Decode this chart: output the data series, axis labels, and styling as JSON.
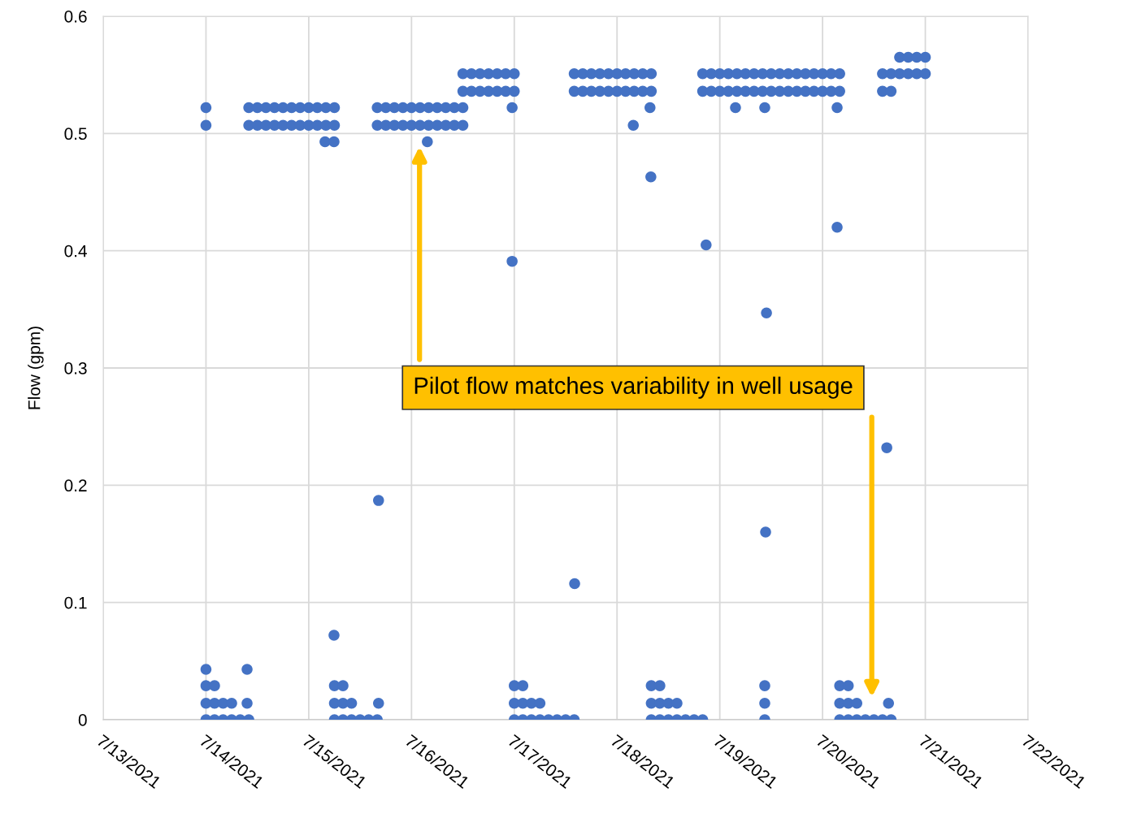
{
  "chart_data": {
    "type": "scatter",
    "ylabel": "Flow (gpm)",
    "xlim": [
      "2021-07-13",
      "2021-07-22"
    ],
    "xticks": [
      {
        "value": "2021-07-13",
        "label": "7/13/2021"
      },
      {
        "value": "2021-07-14",
        "label": "7/14/2021"
      },
      {
        "value": "2021-07-15",
        "label": "7/15/2021"
      },
      {
        "value": "2021-07-16",
        "label": "7/16/2021"
      },
      {
        "value": "2021-07-17",
        "label": "7/17/2021"
      },
      {
        "value": "2021-07-18",
        "label": "7/18/2021"
      },
      {
        "value": "2021-07-19",
        "label": "7/19/2021"
      },
      {
        "value": "2021-07-20",
        "label": "7/20/2021"
      },
      {
        "value": "2021-07-21",
        "label": "7/21/2021"
      },
      {
        "value": "2021-07-22",
        "label": "7/22/2021"
      }
    ],
    "ylim": [
      0,
      0.6
    ],
    "yticks": [
      0,
      0.1,
      0.2,
      0.3,
      0.4,
      0.5,
      0.6
    ],
    "grid": true,
    "marker": "circle",
    "annotations": [
      "Pilot flow matches variability in well usage"
    ],
    "series": [
      {
        "color": "#4472c4",
        "x": [
          "2021-07-14T00:00",
          "2021-07-14T10:00",
          "2021-07-14T12:00",
          "2021-07-14T14:00",
          "2021-07-14T16:00",
          "2021-07-14T18:00",
          "2021-07-14T20:00",
          "2021-07-14T22:00",
          "2021-07-15T00:00",
          "2021-07-15T02:00",
          "2021-07-15T04:00",
          "2021-07-15T06:00",
          "2021-07-15T16:00",
          "2021-07-15T18:00",
          "2021-07-15T20:00",
          "2021-07-15T22:00",
          "2021-07-16T00:00",
          "2021-07-16T02:00",
          "2021-07-16T04:00",
          "2021-07-16T06:00",
          "2021-07-16T08:00",
          "2021-07-16T10:00",
          "2021-07-16T12:00",
          "2021-07-16T23:30",
          "2021-07-18T07:42",
          "2021-07-19T03:40",
          "2021-07-19T10:30",
          "2021-07-20T03:24"
        ],
        "values": [
          0.522,
          0.522,
          0.522,
          0.522,
          0.522,
          0.522,
          0.522,
          0.522,
          0.522,
          0.522,
          0.522,
          0.522,
          0.522,
          0.522,
          0.522,
          0.522,
          0.522,
          0.522,
          0.522,
          0.522,
          0.522,
          0.522,
          0.522,
          0.522,
          0.522,
          0.522,
          0.522,
          0.522
        ]
      },
      {
        "color": "#4472c4",
        "x": [
          "2021-07-14T00:00",
          "2021-07-14T10:00",
          "2021-07-14T12:00",
          "2021-07-14T14:00",
          "2021-07-14T16:00",
          "2021-07-14T18:00",
          "2021-07-14T20:00",
          "2021-07-14T22:00",
          "2021-07-15T00:00",
          "2021-07-15T02:00",
          "2021-07-15T04:00",
          "2021-07-15T06:00",
          "2021-07-15T16:00",
          "2021-07-15T18:00",
          "2021-07-15T20:00",
          "2021-07-15T22:00",
          "2021-07-16T00:00",
          "2021-07-16T02:00",
          "2021-07-16T04:00",
          "2021-07-16T06:00",
          "2021-07-16T08:00",
          "2021-07-16T10:00",
          "2021-07-16T12:00",
          "2021-07-18T03:48"
        ],
        "values": [
          0.507,
          0.507,
          0.507,
          0.507,
          0.507,
          0.507,
          0.507,
          0.507,
          0.507,
          0.507,
          0.507,
          0.507,
          0.507,
          0.507,
          0.507,
          0.507,
          0.507,
          0.507,
          0.507,
          0.507,
          0.507,
          0.507,
          0.507,
          0.507
        ]
      },
      {
        "color": "#4472c4",
        "x": [
          "2021-07-15T03:48",
          "2021-07-15T05:54",
          "2021-07-16T03:42"
        ],
        "values": [
          0.493,
          0.493,
          0.493
        ]
      },
      {
        "color": "#4472c4",
        "x": [
          "2021-07-16T12:00",
          "2021-07-16T14:00",
          "2021-07-16T16:00",
          "2021-07-16T18:00",
          "2021-07-16T20:00",
          "2021-07-16T22:00",
          "2021-07-17T00:00",
          "2021-07-17T14:00",
          "2021-07-17T16:00",
          "2021-07-17T18:00",
          "2021-07-17T20:00",
          "2021-07-17T22:00",
          "2021-07-18T00:00",
          "2021-07-18T02:00",
          "2021-07-18T04:00",
          "2021-07-18T06:00",
          "2021-07-18T08:00",
          "2021-07-18T20:00",
          "2021-07-18T22:00",
          "2021-07-19T00:00",
          "2021-07-19T02:00",
          "2021-07-19T04:00",
          "2021-07-19T06:00",
          "2021-07-19T08:00",
          "2021-07-19T10:00",
          "2021-07-19T12:00",
          "2021-07-19T14:00",
          "2021-07-19T16:00",
          "2021-07-19T18:00",
          "2021-07-19T20:00",
          "2021-07-19T22:00",
          "2021-07-20T00:00",
          "2021-07-20T02:00",
          "2021-07-20T04:00",
          "2021-07-20T14:00",
          "2021-07-20T16:00",
          "2021-07-20T18:00",
          "2021-07-20T20:00",
          "2021-07-20T22:00",
          "2021-07-21T00:00"
        ],
        "values": [
          0.551,
          0.551,
          0.551,
          0.551,
          0.551,
          0.551,
          0.551,
          0.551,
          0.551,
          0.551,
          0.551,
          0.551,
          0.551,
          0.551,
          0.551,
          0.551,
          0.551,
          0.551,
          0.551,
          0.551,
          0.551,
          0.551,
          0.551,
          0.551,
          0.551,
          0.551,
          0.551,
          0.551,
          0.551,
          0.551,
          0.551,
          0.551,
          0.551,
          0.551,
          0.551,
          0.551,
          0.551,
          0.551,
          0.551,
          0.551
        ]
      },
      {
        "color": "#4472c4",
        "x": [
          "2021-07-16T12:00",
          "2021-07-16T14:00",
          "2021-07-16T16:00",
          "2021-07-16T18:00",
          "2021-07-16T20:00",
          "2021-07-16T22:00",
          "2021-07-17T00:00",
          "2021-07-17T14:00",
          "2021-07-17T16:00",
          "2021-07-17T18:00",
          "2021-07-17T20:00",
          "2021-07-17T22:00",
          "2021-07-18T00:00",
          "2021-07-18T02:00",
          "2021-07-18T04:00",
          "2021-07-18T06:00",
          "2021-07-18T08:00",
          "2021-07-18T20:00",
          "2021-07-18T22:00",
          "2021-07-19T00:00",
          "2021-07-19T02:00",
          "2021-07-19T04:00",
          "2021-07-19T06:00",
          "2021-07-19T08:00",
          "2021-07-19T10:00",
          "2021-07-19T12:00",
          "2021-07-19T14:00",
          "2021-07-19T16:00",
          "2021-07-19T18:00",
          "2021-07-19T20:00",
          "2021-07-19T22:00",
          "2021-07-20T00:00",
          "2021-07-20T02:00",
          "2021-07-20T04:00",
          "2021-07-20T14:00",
          "2021-07-20T16:00"
        ],
        "values": [
          0.536,
          0.536,
          0.536,
          0.536,
          0.536,
          0.536,
          0.536,
          0.536,
          0.536,
          0.536,
          0.536,
          0.536,
          0.536,
          0.536,
          0.536,
          0.536,
          0.536,
          0.536,
          0.536,
          0.536,
          0.536,
          0.536,
          0.536,
          0.536,
          0.536,
          0.536,
          0.536,
          0.536,
          0.536,
          0.536,
          0.536,
          0.536,
          0.536,
          0.536,
          0.536,
          0.536
        ]
      },
      {
        "color": "#4472c4",
        "x": [
          "2021-07-20T18:00",
          "2021-07-20T20:00",
          "2021-07-20T22:00",
          "2021-07-21T00:00"
        ],
        "values": [
          0.565,
          0.565,
          0.565,
          0.565
        ]
      },
      {
        "color": "#4472c4",
        "x": [
          "2021-07-16T23:30",
          "2021-07-18T07:54",
          "2021-07-18T20:48",
          "2021-07-19T10:54",
          "2021-07-20T03:24",
          "2021-07-20T15:00",
          "2021-07-19T10:42",
          "2021-07-17T14:06",
          "2021-07-15T16:18",
          "2021-07-15T05:54"
        ],
        "values": [
          0.391,
          0.463,
          0.405,
          0.347,
          0.42,
          0.232,
          0.16,
          0.116,
          0.187,
          0.072
        ]
      },
      {
        "color": "#4472c4",
        "x": [
          "2021-07-14T00:00",
          "2021-07-14T09:36",
          "2021-07-14T00:00",
          "2021-07-14T02:00",
          "2021-07-15T06:00",
          "2021-07-15T08:00",
          "2021-07-17T00:00",
          "2021-07-17T02:00",
          "2021-07-18T08:00",
          "2021-07-18T10:00",
          "2021-07-19T10:30",
          "2021-07-20T04:00",
          "2021-07-20T06:00"
        ],
        "values": [
          0.043,
          0.043,
          0.029,
          0.029,
          0.029,
          0.029,
          0.029,
          0.029,
          0.029,
          0.029,
          0.029,
          0.029,
          0.029
        ]
      },
      {
        "color": "#4472c4",
        "x": [
          "2021-07-14T00:00",
          "2021-07-14T02:00",
          "2021-07-14T04:00",
          "2021-07-14T06:00",
          "2021-07-14T09:36",
          "2021-07-15T06:00",
          "2021-07-15T08:00",
          "2021-07-15T10:00",
          "2021-07-15T16:18",
          "2021-07-17T00:00",
          "2021-07-17T02:00",
          "2021-07-17T04:00",
          "2021-07-17T06:00",
          "2021-07-18T08:00",
          "2021-07-18T10:00",
          "2021-07-18T12:00",
          "2021-07-18T14:00",
          "2021-07-19T10:30",
          "2021-07-20T04:00",
          "2021-07-20T06:00",
          "2021-07-20T08:00",
          "2021-07-20T15:24"
        ],
        "values": [
          0.014,
          0.014,
          0.014,
          0.014,
          0.014,
          0.014,
          0.014,
          0.014,
          0.014,
          0.014,
          0.014,
          0.014,
          0.014,
          0.014,
          0.014,
          0.014,
          0.014,
          0.014,
          0.014,
          0.014,
          0.014,
          0.014
        ]
      },
      {
        "color": "#4472c4",
        "x": [
          "2021-07-14T00:00",
          "2021-07-14T02:00",
          "2021-07-14T04:00",
          "2021-07-14T06:00",
          "2021-07-14T08:00",
          "2021-07-14T10:00",
          "2021-07-15T06:00",
          "2021-07-15T08:00",
          "2021-07-15T10:00",
          "2021-07-15T12:00",
          "2021-07-15T14:00",
          "2021-07-15T16:00",
          "2021-07-17T00:00",
          "2021-07-17T02:00",
          "2021-07-17T04:00",
          "2021-07-17T06:00",
          "2021-07-17T08:00",
          "2021-07-17T10:00",
          "2021-07-17T12:00",
          "2021-07-17T14:00",
          "2021-07-18T08:00",
          "2021-07-18T10:00",
          "2021-07-18T12:00",
          "2021-07-18T14:00",
          "2021-07-18T16:00",
          "2021-07-18T18:00",
          "2021-07-18T20:00",
          "2021-07-19T10:30",
          "2021-07-20T04:00",
          "2021-07-20T06:00",
          "2021-07-20T08:00",
          "2021-07-20T10:00",
          "2021-07-20T12:00",
          "2021-07-20T14:00",
          "2021-07-20T16:00"
        ],
        "values": [
          0,
          0,
          0,
          0,
          0,
          0,
          0,
          0,
          0,
          0,
          0,
          0,
          0,
          0,
          0,
          0,
          0,
          0,
          0,
          0,
          0,
          0,
          0,
          0,
          0,
          0,
          0,
          0,
          0,
          0,
          0,
          0,
          0,
          0,
          0
        ]
      }
    ]
  }
}
